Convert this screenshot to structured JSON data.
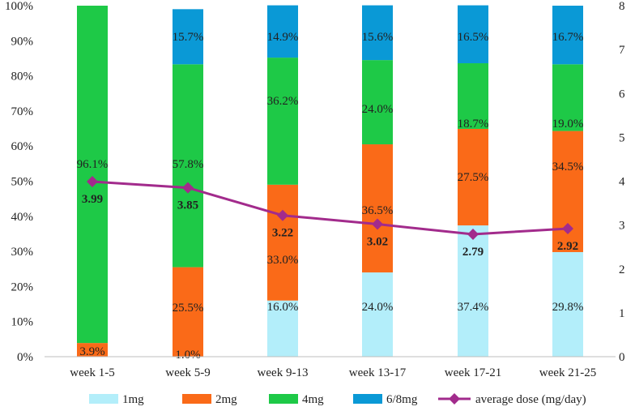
{
  "chart_data": {
    "type": "bar",
    "stacked": true,
    "categories": [
      "week 1-5",
      "week 5-9",
      "week 9-13",
      "week 13-17",
      "week 17-21",
      "week 21-25"
    ],
    "series": [
      {
        "name": "1mg",
        "color": "#b3eefa",
        "values": [
          0.0,
          0.0,
          16.0,
          24.0,
          37.4,
          29.8
        ],
        "labels": [
          "",
          "",
          "16.0%",
          "24.0%",
          "37.4%",
          "29.8%"
        ]
      },
      {
        "name": "2mg",
        "color": "#fa6a18",
        "values": [
          3.9,
          25.5,
          33.0,
          36.5,
          27.5,
          34.5
        ],
        "labels": [
          "3.9%",
          "25.5%",
          "33.0%",
          "36.5%",
          "27.5%",
          "34.5%"
        ]
      },
      {
        "name": "4mg",
        "color": "#1ec947",
        "values": [
          96.1,
          57.8,
          36.2,
          24.0,
          18.7,
          19.0
        ],
        "labels": [
          "96.1%",
          "57.8%",
          "36.2%",
          "24.0%",
          "18.7%",
          "19.0%"
        ]
      },
      {
        "name": "6/8mg",
        "color": "#0a99d6",
        "values": [
          0.0,
          15.7,
          14.9,
          15.6,
          16.5,
          16.7
        ],
        "labels": [
          "",
          "15.7%",
          "14.9%",
          "15.6%",
          "16.5%",
          "16.7%"
        ]
      }
    ],
    "extra_labels": [
      {
        "category": 1,
        "text": "1.0%"
      }
    ],
    "line": {
      "name": "average dose (mg/day)",
      "color": "#a22b8c",
      "values": [
        3.99,
        3.85,
        3.22,
        3.02,
        2.79,
        2.92
      ],
      "labels": [
        "3.99",
        "3.85",
        "3.22",
        "3.02",
        "2.79",
        "2.92"
      ]
    },
    "y_left": {
      "ylim": [
        0,
        100
      ],
      "ticks": [
        "0%",
        "10%",
        "20%",
        "30%",
        "40%",
        "50%",
        "60%",
        "70%",
        "80%",
        "90%",
        "100%"
      ]
    },
    "y_right": {
      "ylim": [
        0,
        8
      ],
      "ticks": [
        "0",
        "1",
        "2",
        "3",
        "4",
        "5",
        "6",
        "7",
        "8"
      ]
    },
    "legend_position": "bottom"
  }
}
